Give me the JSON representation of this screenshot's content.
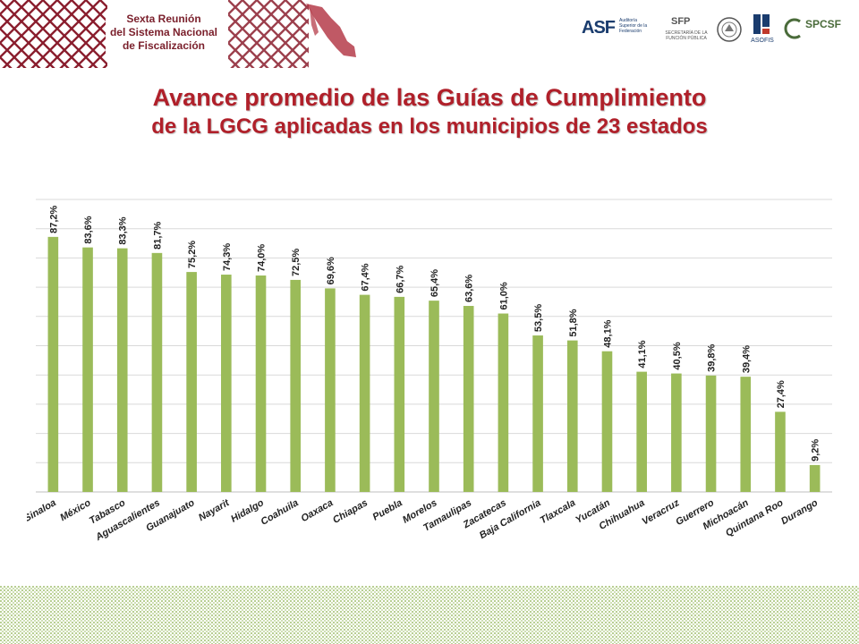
{
  "header": {
    "event": [
      "Sexta Reunión",
      "del Sistema Nacional",
      "de Fiscalización"
    ],
    "logos": {
      "asf": "ASF",
      "asf_tagline": "Auditoría Superior de la Federación",
      "sfp": "SFP",
      "sfp_tagline": "SECRETARÍA DE LA FUNCIÓN PÚBLICA",
      "asofis": "ASOFIS",
      "spcsf": "SPCSF"
    },
    "logo_icons": [
      "mexico-map-icon",
      "mexican-seal-icon",
      "asofis-logo-icon",
      "spcsf-logo-icon"
    ]
  },
  "title": {
    "line1": "Avance promedio de las Guías de Cumplimiento",
    "line2": "de la LGCG aplicadas en los municipios de 23 estados",
    "color": "#b0202a"
  },
  "chart_data": {
    "type": "bar",
    "categories": [
      "Sinaloa",
      "México",
      "Tabasco",
      "Aguascalientes",
      "Guanajuato",
      "Nayarit",
      "Hidalgo",
      "Coahuila",
      "Oaxaca",
      "Chiapas",
      "Puebla",
      "Morelos",
      "Tamaulipas",
      "Zacatecas",
      "Baja California",
      "Tlaxcala",
      "Yucatán",
      "Chihuahua",
      "Veracruz",
      "Guerrero",
      "Michoacán",
      "Quintana Roo",
      "Durango"
    ],
    "values": [
      87.2,
      83.6,
      83.3,
      81.7,
      75.2,
      74.3,
      74.0,
      72.5,
      69.6,
      67.4,
      66.7,
      65.4,
      63.6,
      61.0,
      53.5,
      51.8,
      48.1,
      41.1,
      40.5,
      39.8,
      39.4,
      27.4,
      9.2
    ],
    "labels": [
      "87,2%",
      "83,6%",
      "83,3%",
      "81,7%",
      "75,2%",
      "74,3%",
      "74,0%",
      "72,5%",
      "69,6%",
      "67,4%",
      "66,7%",
      "65,4%",
      "63,6%",
      "61,0%",
      "53,5%",
      "51,8%",
      "48,1%",
      "41,1%",
      "40,5%",
      "39,8%",
      "39,4%",
      "27,4%",
      "9,2%"
    ],
    "ylim": [
      0,
      100
    ],
    "grid": true,
    "bar_color": "#9bbb59",
    "grid_color": "#d9d9d9"
  }
}
